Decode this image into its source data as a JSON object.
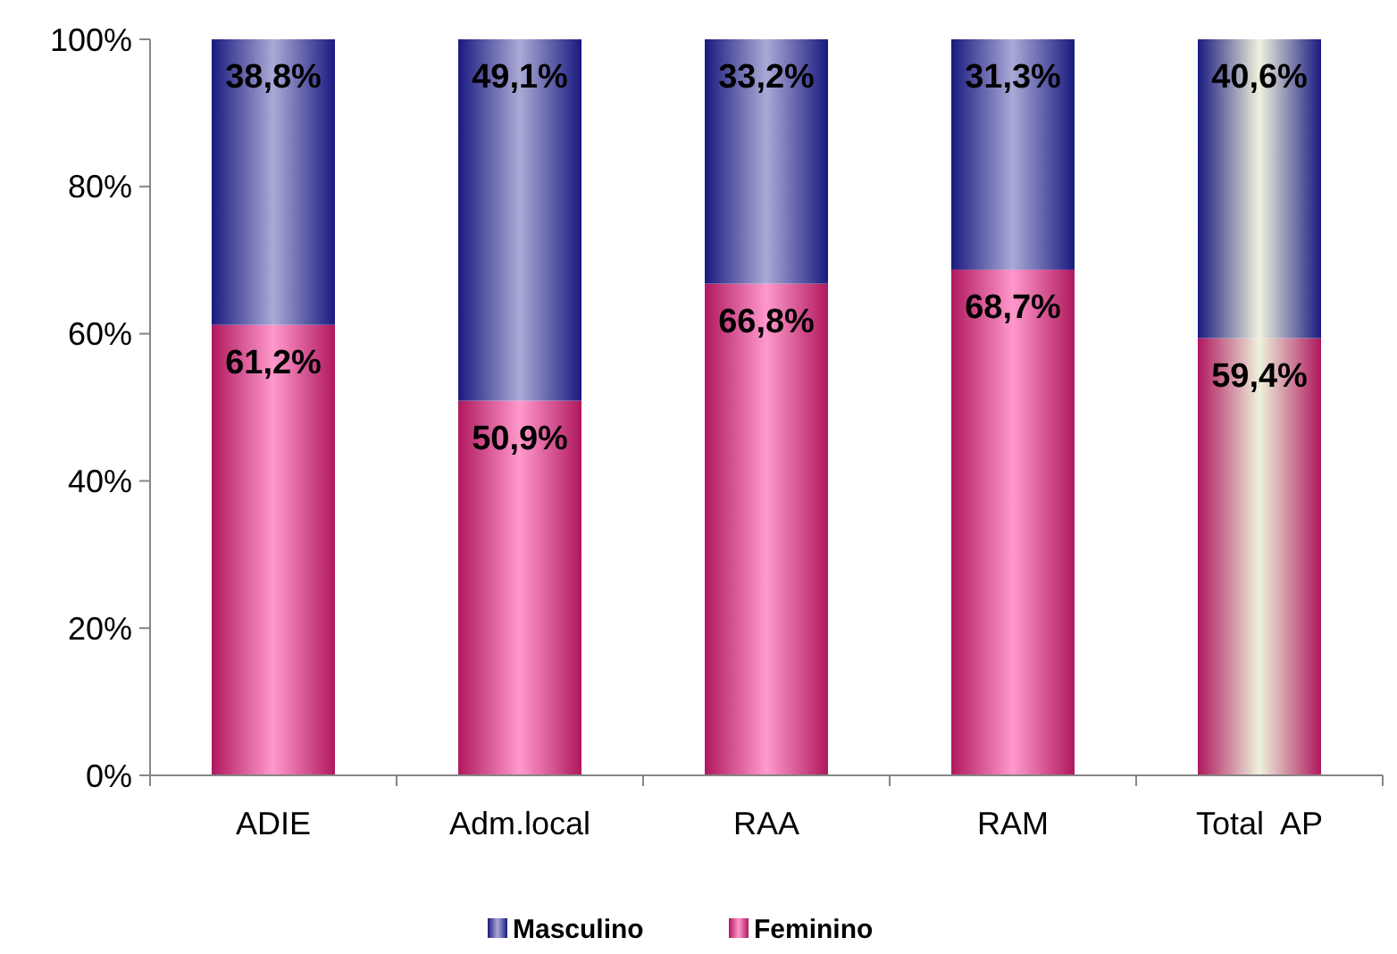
{
  "chart_data": {
    "type": "bar",
    "stacked": true,
    "categories": [
      "ADIE",
      "Adm.local",
      "RAA",
      "RAM",
      "Total  AP"
    ],
    "series": [
      {
        "name": "Feminino",
        "color": "#b0185e",
        "colors": [
          "#ff99cc",
          "#ff99cc",
          "#ff99cc",
          "#ff99cc",
          "#eef2dc"
        ],
        "values": [
          61.2,
          50.9,
          66.8,
          68.7,
          59.4
        ],
        "value_labels": [
          "61,2%",
          "50,9%",
          "66,8%",
          "68,7%",
          "59,4%"
        ]
      },
      {
        "name": "Masculino",
        "color": "#1a1a80",
        "colors": [
          "#aaaad6",
          "#aaaad6",
          "#aaaad6",
          "#aaaad6",
          "#eef2dc"
        ],
        "values": [
          38.8,
          49.1,
          33.2,
          31.3,
          40.6
        ],
        "value_labels": [
          "38,8%",
          "49,1%",
          "33,2%",
          "31,3%",
          "40,6%"
        ]
      }
    ],
    "ylim": [
      0,
      100
    ],
    "yticks": [
      {
        "value": 0,
        "label": "0%"
      },
      {
        "value": 20,
        "label": "20%"
      },
      {
        "value": 40,
        "label": "40%"
      },
      {
        "value": 60,
        "label": "60%"
      },
      {
        "value": 80,
        "label": "80%"
      },
      {
        "value": 100,
        "label": "100%"
      }
    ],
    "legend": "bottom"
  }
}
